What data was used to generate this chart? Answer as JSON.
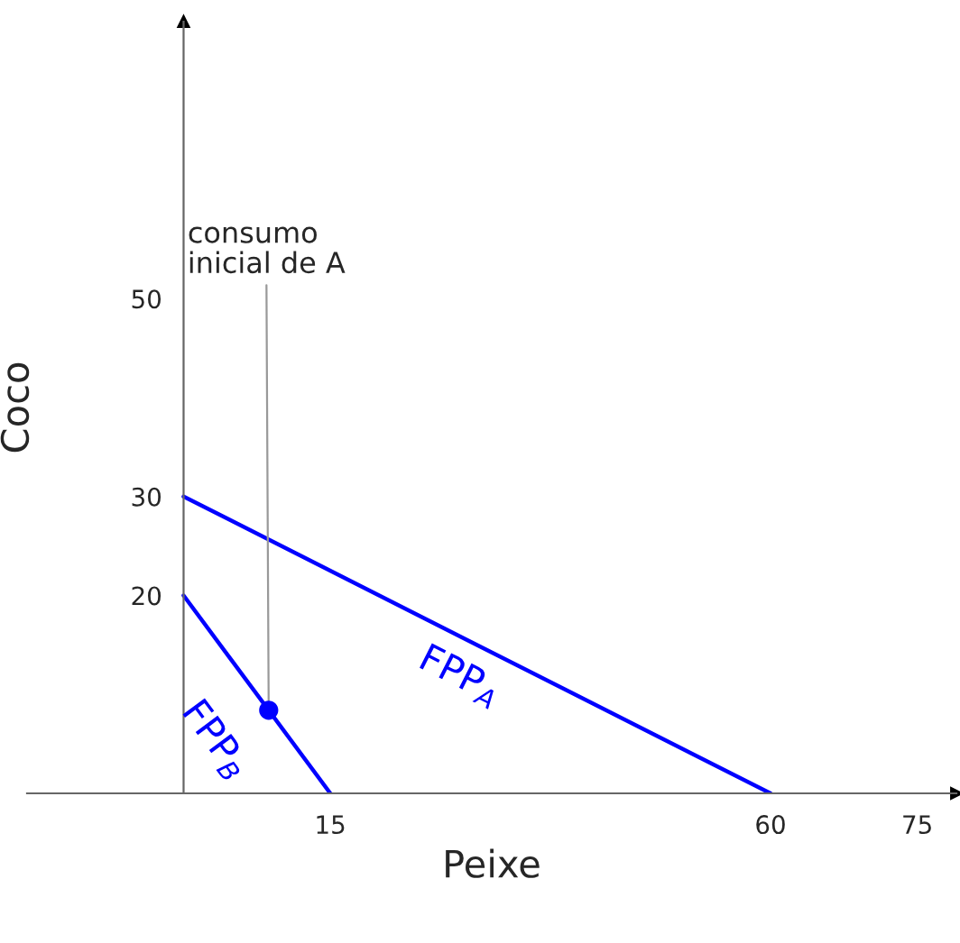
{
  "chart_data": {
    "type": "line",
    "xlabel": "Peixe",
    "ylabel": "Coco",
    "xlim": [
      -16,
      79
    ],
    "ylim": [
      0,
      78
    ],
    "xticks": [
      15,
      60,
      75
    ],
    "yticks": [
      20,
      30,
      50
    ],
    "grid": false,
    "legend": false,
    "marker": "none",
    "series": [
      {
        "name": "FPP$_{A}$",
        "color": "#0000ff",
        "x": [
          0,
          60
        ],
        "values": [
          30,
          0
        ]
      },
      {
        "name": "FPP$_{B}$",
        "color": "#0000ff",
        "x": [
          0,
          15
        ],
        "values": [
          20,
          0
        ]
      },
      {
        "type": "scatter",
        "color": "#0000ff",
        "x": [
          8.7
        ],
        "values": [
          8.4
        ],
        "marker": "circle"
      }
    ],
    "annotations": [
      {
        "text": "consumo\ninicial de A",
        "x": 8.7,
        "y": 8.4
      }
    ]
  }
}
